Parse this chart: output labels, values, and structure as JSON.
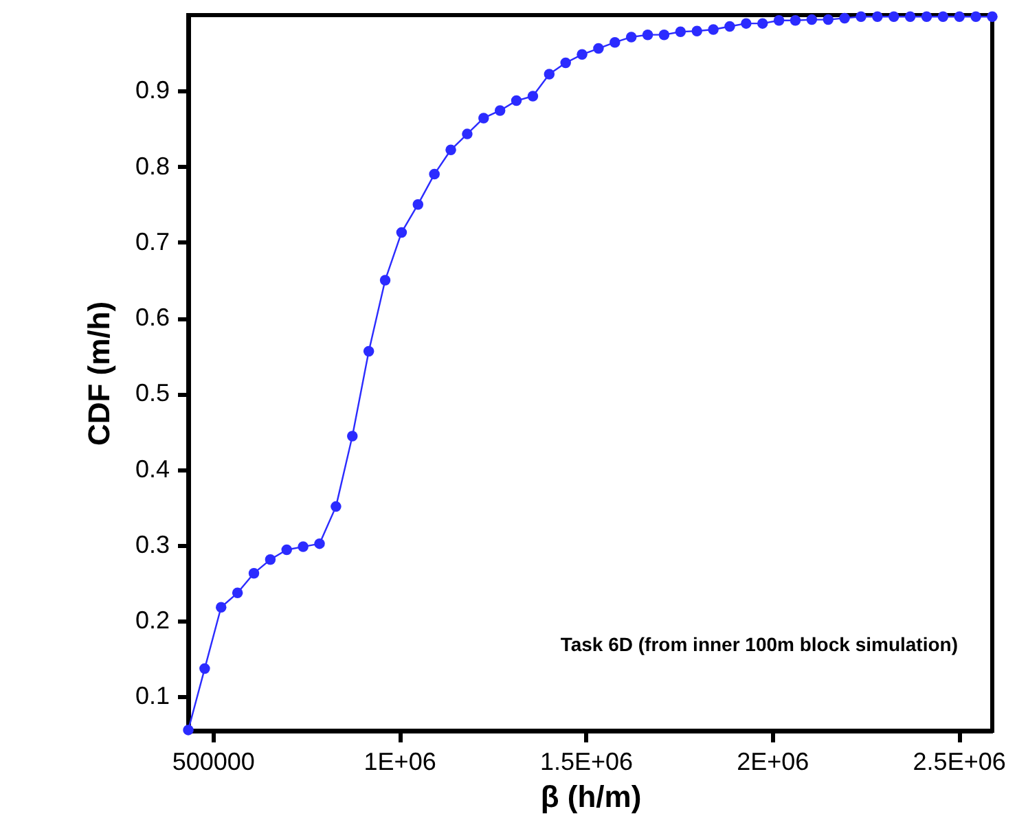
{
  "chart_data": {
    "type": "line",
    "xlabel": "β (h/m)",
    "ylabel": "CDF (m/h)",
    "annotations": [
      "Task 6D (from inner 100m block simulation)"
    ],
    "x": [
      434000,
      478000,
      522000,
      566000,
      610000,
      654000,
      698000,
      742000,
      786000,
      830000,
      874000,
      918000,
      962000,
      1006000,
      1050000,
      1094000,
      1138000,
      1182000,
      1226000,
      1270000,
      1314000,
      1358000,
      1402000,
      1446000,
      1490000,
      1534000,
      1578000,
      1622000,
      1666000,
      1710000,
      1754000,
      1798000,
      1842000,
      1886000,
      1930000,
      1974000,
      2018000,
      2062000,
      2106000,
      2150000,
      2194000,
      2238000,
      2282000,
      2326000,
      2370000,
      2414000,
      2458000,
      2502000,
      2546000,
      2590000
    ],
    "series": [
      {
        "color": "#2b2bff",
        "values": [
          0.056,
          0.137,
          0.218,
          0.237,
          0.263,
          0.281,
          0.294,
          0.298,
          0.302,
          0.351,
          0.444,
          0.556,
          0.65,
          0.713,
          0.75,
          0.79,
          0.822,
          0.843,
          0.864,
          0.874,
          0.887,
          0.893,
          0.922,
          0.937,
          0.948,
          0.956,
          0.964,
          0.971,
          0.974,
          0.974,
          0.978,
          0.979,
          0.981,
          0.985,
          0.989,
          0.989,
          0.993,
          0.993,
          0.994,
          0.994,
          0.996,
          0.998,
          0.998,
          0.998,
          0.998,
          0.998,
          0.998,
          0.998,
          0.998,
          0.998
        ]
      }
    ],
    "xlim": [
      434000,
      2590000
    ],
    "ylim": [
      0.055,
      1.0
    ],
    "xticks": [
      500000,
      {
        "value": 1000000,
        "label": "1E+06"
      },
      {
        "value": 1500000,
        "label": "1.5E+06"
      },
      {
        "value": 2000000,
        "label": "2E+06"
      },
      {
        "value": 2500000,
        "label": "2.5E+06"
      }
    ],
    "yticks": [
      0.1,
      0.2,
      0.3,
      0.4,
      0.5,
      0.6,
      0.7,
      0.8,
      0.9
    ],
    "grid": false,
    "marker": "circle",
    "line_style": "solid"
  }
}
